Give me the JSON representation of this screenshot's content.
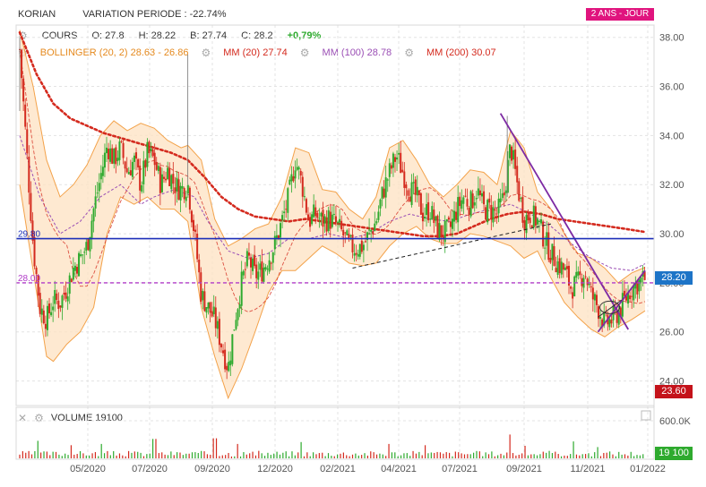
{
  "header": {
    "ticker": "KORIAN",
    "variation_label": "VARIATION PERIODE : -22.74%",
    "period_badge": "2 ANS - JOUR"
  },
  "legend": {
    "cours": "COURS",
    "open": "O: 27.8",
    "high": "H: 28.22",
    "low": "B: 27.74",
    "close": "C: 28.2",
    "change": "+0,79%",
    "bollinger": "BOLLINGER (20, 2) 28.63 - 26.86",
    "mm20": "MM (20) 27.74",
    "mm100": "MM (100) 28.78",
    "mm200": "MM (200) 30.07",
    "volume": "VOLUME  19100"
  },
  "colors": {
    "up": "#2eaa2e",
    "down": "#d42a1e",
    "bollinger": "#f3a24a",
    "mm20": "#d42a1e",
    "mm100": "#9b4fb5",
    "mm200": "#d42a1e",
    "support": "#1d2fb8",
    "dashed_purple": "#b13cc8",
    "trend": "#7d2aa3",
    "last_price_tag": "#1d74c7",
    "low_tag": "#c4121a",
    "volume_tag": "#2eaa2e"
  },
  "chart_data": {
    "type": "line",
    "title": "KORIAN",
    "subtitle": "VARIATION PERIODE : -22.74%",
    "period": "2 ANS - JOUR",
    "x_ticks": [
      "05/2020",
      "07/2020",
      "09/2020",
      "12/2020",
      "02/2021",
      "04/2021",
      "07/2021",
      "09/2021",
      "11/2021",
      "01/2022"
    ],
    "y_ticks": [
      "38.00",
      "36.00",
      "34.00",
      "32.00",
      "30.00",
      "28.00",
      "26.00",
      "24.00"
    ],
    "ylim": [
      23.0,
      38.5
    ],
    "volume_ticks": [
      "600.0K"
    ],
    "volume_ylim": [
      0,
      800000
    ],
    "reference_lines": [
      {
        "label": "29.80",
        "value": 29.8,
        "style": "solid"
      },
      {
        "label": "28.00",
        "value": 28.0,
        "style": "dashed"
      }
    ],
    "last_price": "28.20",
    "lowest_price": "23.60",
    "last_volume": "19 100",
    "price_path": [
      [
        0,
        37.5
      ],
      [
        2,
        33.5
      ],
      [
        4,
        29.5
      ],
      [
        6,
        27.0
      ],
      [
        8,
        26.5
      ],
      [
        10,
        27.3
      ],
      [
        12,
        27.2
      ],
      [
        14,
        27.8
      ],
      [
        16,
        28.6
      ],
      [
        18,
        29.0
      ],
      [
        20,
        29.5
      ],
      [
        22,
        31.0
      ],
      [
        24,
        32.3
      ],
      [
        26,
        33.6
      ],
      [
        28,
        33.0
      ],
      [
        30,
        33.5
      ],
      [
        32,
        32.5
      ],
      [
        34,
        33.0
      ],
      [
        36,
        32.0
      ],
      [
        38,
        33.3
      ],
      [
        40,
        33.0
      ],
      [
        42,
        32.0
      ],
      [
        44,
        32.6
      ],
      [
        46,
        32.0
      ],
      [
        48,
        31.8
      ],
      [
        50,
        32.0
      ],
      [
        52,
        30.0
      ],
      [
        54,
        27.5
      ],
      [
        56,
        27.0
      ],
      [
        58,
        26.5
      ],
      [
        60,
        25.5
      ],
      [
        62,
        24.5
      ],
      [
        64,
        26.5
      ],
      [
        66,
        28.0
      ],
      [
        68,
        29.0
      ],
      [
        70,
        28.3
      ],
      [
        72,
        28.5
      ],
      [
        74,
        29.0
      ],
      [
        76,
        29.6
      ],
      [
        78,
        30.5
      ],
      [
        80,
        31.5
      ],
      [
        82,
        33.0
      ],
      [
        84,
        32.0
      ],
      [
        86,
        30.5
      ],
      [
        88,
        30.8
      ],
      [
        90,
        30.5
      ],
      [
        92,
        30.6
      ],
      [
        94,
        30.4
      ],
      [
        96,
        30.0
      ],
      [
        98,
        29.5
      ],
      [
        100,
        29.4
      ],
      [
        102,
        29.5
      ],
      [
        104,
        30.0
      ],
      [
        106,
        30.5
      ],
      [
        108,
        31.7
      ],
      [
        110,
        32.5
      ],
      [
        112,
        33.2
      ],
      [
        114,
        32.5
      ],
      [
        116,
        31.8
      ],
      [
        118,
        31.5
      ],
      [
        120,
        30.8
      ],
      [
        122,
        31.0
      ],
      [
        124,
        30.2
      ],
      [
        126,
        30.0
      ],
      [
        128,
        30.2
      ],
      [
        130,
        31.0
      ],
      [
        132,
        31.5
      ],
      [
        134,
        31.2
      ],
      [
        136,
        31.8
      ],
      [
        138,
        31.0
      ],
      [
        140,
        31.0
      ],
      [
        142,
        30.8
      ],
      [
        144,
        31.5
      ],
      [
        146,
        33.6
      ],
      [
        148,
        32.0
      ],
      [
        150,
        30.6
      ],
      [
        152,
        30.8
      ],
      [
        154,
        30.5
      ],
      [
        156,
        29.8
      ],
      [
        158,
        29.2
      ],
      [
        160,
        28.8
      ],
      [
        162,
        28.5
      ],
      [
        164,
        27.8
      ],
      [
        166,
        28.0
      ],
      [
        168,
        28.5
      ],
      [
        170,
        27.5
      ],
      [
        172,
        27.0
      ],
      [
        174,
        26.3
      ],
      [
        176,
        26.5
      ],
      [
        178,
        26.8
      ],
      [
        180,
        27.3
      ],
      [
        182,
        27.8
      ],
      [
        184,
        28.0
      ],
      [
        186,
        28.2
      ]
    ],
    "ma200_path": [
      [
        0,
        38.2
      ],
      [
        5,
        36.5
      ],
      [
        10,
        35.3
      ],
      [
        15,
        34.7
      ],
      [
        20,
        34.4
      ],
      [
        25,
        34.1
      ],
      [
        30,
        33.9
      ],
      [
        35,
        33.7
      ],
      [
        40,
        33.5
      ],
      [
        45,
        33.3
      ],
      [
        50,
        33.0
      ],
      [
        55,
        32.3
      ],
      [
        60,
        31.5
      ],
      [
        65,
        31.0
      ],
      [
        70,
        30.7
      ],
      [
        75,
        30.6
      ],
      [
        80,
        30.5
      ],
      [
        85,
        30.6
      ],
      [
        90,
        30.5
      ],
      [
        95,
        30.4
      ],
      [
        100,
        30.3
      ],
      [
        105,
        30.2
      ],
      [
        110,
        30.1
      ],
      [
        115,
        30.0
      ],
      [
        120,
        29.9
      ],
      [
        125,
        29.9
      ],
      [
        130,
        30.0
      ],
      [
        135,
        30.3
      ],
      [
        140,
        30.6
      ],
      [
        145,
        30.8
      ],
      [
        150,
        30.9
      ],
      [
        155,
        30.8
      ],
      [
        160,
        30.6
      ],
      [
        165,
        30.5
      ],
      [
        170,
        30.4
      ],
      [
        175,
        30.3
      ],
      [
        180,
        30.2
      ],
      [
        186,
        30.07
      ]
    ],
    "ma100_path": [
      [
        0,
        34.0
      ],
      [
        6,
        31.5
      ],
      [
        12,
        30.0
      ],
      [
        18,
        30.5
      ],
      [
        24,
        31.5
      ],
      [
        30,
        32.0
      ],
      [
        36,
        31.2
      ],
      [
        40,
        31.5
      ],
      [
        46,
        31.8
      ],
      [
        52,
        31.5
      ],
      [
        56,
        30.5
      ],
      [
        62,
        29.3
      ],
      [
        68,
        29.0
      ],
      [
        74,
        29.2
      ],
      [
        80,
        29.8
      ],
      [
        86,
        29.8
      ],
      [
        92,
        30.0
      ],
      [
        98,
        29.8
      ],
      [
        104,
        30.0
      ],
      [
        110,
        30.5
      ],
      [
        116,
        30.8
      ],
      [
        122,
        30.6
      ],
      [
        128,
        30.5
      ],
      [
        134,
        30.8
      ],
      [
        140,
        31.0
      ],
      [
        146,
        31.2
      ],
      [
        152,
        30.8
      ],
      [
        158,
        30.3
      ],
      [
        164,
        29.6
      ],
      [
        170,
        29.0
      ],
      [
        176,
        28.6
      ],
      [
        182,
        28.5
      ],
      [
        186,
        28.78
      ]
    ],
    "bollinger_upper": [
      [
        0,
        38.3
      ],
      [
        4,
        36.0
      ],
      [
        8,
        33.0
      ],
      [
        12,
        31.5
      ],
      [
        16,
        32.0
      ],
      [
        20,
        32.8
      ],
      [
        24,
        34.0
      ],
      [
        28,
        34.6
      ],
      [
        32,
        34.2
      ],
      [
        36,
        34.5
      ],
      [
        40,
        34.3
      ],
      [
        44,
        33.8
      ],
      [
        48,
        33.5
      ],
      [
        50,
        33.6
      ],
      [
        54,
        33.0
      ],
      [
        58,
        30.6
      ],
      [
        62,
        29.5
      ],
      [
        66,
        29.8
      ],
      [
        70,
        30.2
      ],
      [
        74,
        30.4
      ],
      [
        78,
        31.5
      ],
      [
        82,
        33.5
      ],
      [
        86,
        33.3
      ],
      [
        90,
        31.8
      ],
      [
        94,
        31.7
      ],
      [
        98,
        31.0
      ],
      [
        102,
        30.6
      ],
      [
        106,
        31.5
      ],
      [
        110,
        33.5
      ],
      [
        114,
        33.8
      ],
      [
        118,
        33.0
      ],
      [
        122,
        32.0
      ],
      [
        126,
        31.5
      ],
      [
        130,
        32.0
      ],
      [
        134,
        32.6
      ],
      [
        138,
        32.5
      ],
      [
        142,
        32.0
      ],
      [
        146,
        34.2
      ],
      [
        150,
        33.5
      ],
      [
        154,
        31.7
      ],
      [
        158,
        31.0
      ],
      [
        162,
        30.0
      ],
      [
        166,
        29.2
      ],
      [
        170,
        29.0
      ],
      [
        174,
        28.6
      ],
      [
        178,
        28.0
      ],
      [
        182,
        28.4
      ],
      [
        186,
        28.63
      ]
    ],
    "bollinger_lower": [
      [
        0,
        32.0
      ],
      [
        4,
        28.5
      ],
      [
        8,
        25.0
      ],
      [
        10,
        24.8
      ],
      [
        14,
        25.5
      ],
      [
        18,
        26.0
      ],
      [
        22,
        27.0
      ],
      [
        26,
        30.0
      ],
      [
        30,
        31.5
      ],
      [
        34,
        31.2
      ],
      [
        38,
        31.5
      ],
      [
        42,
        31.0
      ],
      [
        46,
        31.0
      ],
      [
        50,
        30.5
      ],
      [
        54,
        27.0
      ],
      [
        58,
        25.0
      ],
      [
        62,
        23.3
      ],
      [
        66,
        24.5
      ],
      [
        70,
        26.0
      ],
      [
        74,
        27.6
      ],
      [
        78,
        28.5
      ],
      [
        82,
        28.5
      ],
      [
        86,
        29.0
      ],
      [
        90,
        29.5
      ],
      [
        94,
        29.2
      ],
      [
        98,
        28.8
      ],
      [
        102,
        28.7
      ],
      [
        106,
        28.8
      ],
      [
        110,
        29.5
      ],
      [
        114,
        30.0
      ],
      [
        118,
        30.3
      ],
      [
        122,
        29.8
      ],
      [
        126,
        29.6
      ],
      [
        130,
        29.6
      ],
      [
        134,
        30.0
      ],
      [
        138,
        29.9
      ],
      [
        142,
        29.7
      ],
      [
        146,
        29.5
      ],
      [
        150,
        29.0
      ],
      [
        154,
        29.3
      ],
      [
        158,
        28.2
      ],
      [
        162,
        27.2
      ],
      [
        166,
        26.6
      ],
      [
        170,
        26.1
      ],
      [
        174,
        25.8
      ],
      [
        178,
        26.2
      ],
      [
        182,
        26.5
      ],
      [
        186,
        26.86
      ]
    ],
    "trendlines": [
      {
        "from": [
          99,
          28.6
        ],
        "to": [
          158,
          30.4
        ],
        "style": "dashed",
        "color": "black"
      },
      {
        "from": [
          143,
          34.9
        ],
        "to": [
          181,
          26.1
        ],
        "style": "solid",
        "color": "purple"
      },
      {
        "from": [
          172,
          26.0
        ],
        "to": [
          186,
          28.5
        ],
        "style": "solid",
        "color": "purple"
      }
    ],
    "volume_spikes": [
      [
        5,
        280000
      ],
      [
        15,
        210000
      ],
      [
        24,
        230000
      ],
      [
        40,
        310000
      ],
      [
        58,
        320000
      ],
      [
        65,
        230000
      ],
      [
        84,
        260000
      ],
      [
        110,
        230000
      ],
      [
        121,
        210000
      ],
      [
        146,
        380000
      ],
      [
        150,
        200000
      ],
      [
        165,
        270000
      ],
      [
        172,
        180000
      ]
    ]
  }
}
